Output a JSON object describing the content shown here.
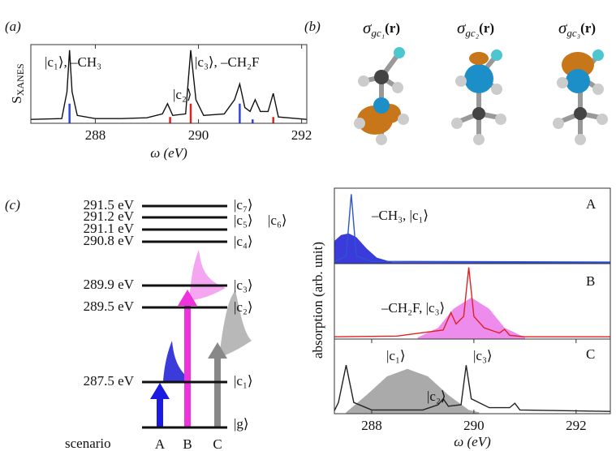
{
  "panel_labels": [
    "(a)",
    "(b)",
    "(c)"
  ],
  "chart_data": [
    {
      "type": "line",
      "xlabel": "ω (eV)",
      "ylabel": "S",
      "ylabel_sub": "XANES",
      "xlim": [
        286.75,
        292.1
      ],
      "ylim": [
        0,
        1
      ],
      "xticks": [
        288,
        290,
        292
      ],
      "series": [
        {
          "kind": "line",
          "color": "#111111",
          "x": [
            286.75,
            287.35,
            287.45,
            287.5,
            287.55,
            287.65,
            288.0,
            288.5,
            289.0,
            289.3,
            289.4,
            289.5,
            289.75,
            289.85,
            289.95,
            290.1,
            290.5,
            290.7,
            290.8,
            290.9,
            291.0,
            291.1,
            291.2,
            291.35,
            291.45,
            291.55,
            292.1
          ],
          "values": [
            0.05,
            0.06,
            0.4,
            0.93,
            0.4,
            0.1,
            0.06,
            0.06,
            0.07,
            0.12,
            0.25,
            0.1,
            0.12,
            0.93,
            0.3,
            0.1,
            0.12,
            0.3,
            0.5,
            0.2,
            0.15,
            0.3,
            0.15,
            0.15,
            0.38,
            0.08,
            0.05
          ]
        },
        {
          "kind": "stick",
          "color": "#3344dd",
          "x": [
            287.5,
            290.8,
            291.05
          ],
          "values": [
            0.25,
            0.25,
            0.05
          ]
        },
        {
          "kind": "stick",
          "color": "#dd2222",
          "x": [
            289.45,
            289.85,
            291.45
          ],
          "values": [
            0.08,
            0.25,
            0.08
          ]
        }
      ],
      "annotations": [
        {
          "text": "|c₁⟩, –CH₃",
          "color": "#111111"
        },
        {
          "text": "|c₂⟩",
          "color": "#111111"
        },
        {
          "text": "|c₃⟩, –CH₂F",
          "color": "#111111"
        }
      ]
    },
    {
      "type": "line",
      "label": "A",
      "xlim": [
        287.27,
        292.67
      ],
      "ylim": [
        0,
        1
      ],
      "series": [
        {
          "kind": "fill",
          "color": "#3b3bdc",
          "x": [
            287.27,
            287.4,
            287.55,
            287.7,
            287.9,
            288.1,
            288.4,
            292.67
          ],
          "values": [
            0.3,
            0.38,
            0.4,
            0.35,
            0.2,
            0.08,
            0.02,
            0.02
          ]
        },
        {
          "kind": "line",
          "color": "#2a55cc",
          "x": [
            287.27,
            287.5,
            287.6,
            287.7,
            288.0,
            292.67
          ],
          "values": [
            0.03,
            0.1,
            0.92,
            0.1,
            0.03,
            0.02
          ]
        }
      ],
      "annotations": [
        {
          "text": "–CH₃, |c₁⟩",
          "color": "#2a6fc0"
        }
      ]
    },
    {
      "type": "line",
      "label": "B",
      "ylabel": "absorption (arb. unit)",
      "xlim": [
        287.27,
        292.67
      ],
      "ylim": [
        0,
        1
      ],
      "series": [
        {
          "kind": "fill",
          "color": "#ee8cee",
          "x": [
            288.9,
            289.3,
            289.6,
            289.95,
            290.3,
            290.6,
            291.0
          ],
          "values": [
            0.02,
            0.15,
            0.4,
            0.55,
            0.4,
            0.15,
            0.02
          ]
        },
        {
          "kind": "line",
          "color": "#dd2222",
          "x": [
            287.27,
            288.5,
            289.4,
            289.55,
            289.65,
            289.8,
            289.9,
            290.0,
            290.2,
            290.5,
            290.6,
            290.7,
            291.0,
            292.67
          ],
          "values": [
            0.03,
            0.04,
            0.12,
            0.35,
            0.2,
            0.3,
            0.95,
            0.3,
            0.15,
            0.08,
            0.13,
            0.05,
            0.03,
            0.03
          ]
        }
      ],
      "annotations": [
        {
          "text": "–CH₂F, |c₃⟩",
          "color": "#dd2222"
        }
      ]
    },
    {
      "type": "line",
      "label": "C",
      "xlabel": "ω (eV)",
      "xlim": [
        287.27,
        292.67
      ],
      "ylim": [
        0,
        1
      ],
      "xticks": [
        288,
        290,
        292
      ],
      "series": [
        {
          "kind": "fill",
          "color": "#aaaaaa",
          "x": [
            287.5,
            287.9,
            288.3,
            288.7,
            289.1,
            289.5,
            289.9,
            290.1
          ],
          "values": [
            0.02,
            0.25,
            0.5,
            0.6,
            0.5,
            0.25,
            0.05,
            0.02
          ]
        },
        {
          "kind": "line",
          "color": "#222222",
          "x": [
            287.27,
            287.35,
            287.5,
            287.65,
            288.0,
            289.0,
            289.3,
            289.4,
            289.5,
            289.75,
            289.85,
            289.95,
            290.3,
            290.7,
            290.8,
            290.9,
            292.67
          ],
          "values": [
            0.04,
            0.15,
            0.65,
            0.15,
            0.05,
            0.05,
            0.12,
            0.2,
            0.1,
            0.12,
            0.65,
            0.2,
            0.08,
            0.08,
            0.14,
            0.05,
            0.03
          ]
        }
      ],
      "annotations": [
        {
          "text": "|c₁⟩",
          "color": "#111111"
        },
        {
          "text": "|c₂⟩",
          "color": "#111111"
        },
        {
          "text": "|c₃⟩",
          "color": "#111111"
        }
      ]
    }
  ],
  "molecules": [
    {
      "symbol": "σ",
      "sub": "gc₁",
      "arg": "(r)"
    },
    {
      "symbol": "σ",
      "sub": "gc₂",
      "arg": "(r)"
    },
    {
      "symbol": "σ",
      "sub": "gc₃",
      "arg": "(r)"
    }
  ],
  "levels": {
    "energies": [
      "291.5 eV",
      "291.2 eV",
      "291.1 eV",
      "290.8 eV",
      "289.9 eV",
      "289.5 eV",
      "287.5 eV"
    ],
    "states": [
      "|c₇⟩",
      "|c₅⟩",
      "|c₆⟩",
      "|c₄⟩",
      "|c₃⟩",
      "|c₂⟩",
      "|c₁⟩",
      "|g⟩"
    ],
    "scenario_title": "scenario",
    "scenarios": [
      "A",
      "B",
      "C"
    ]
  }
}
